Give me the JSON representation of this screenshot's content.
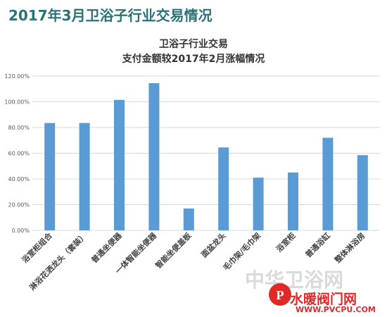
{
  "header": {
    "title": "2017年3月卫浴子行业交易情况"
  },
  "chart_data": {
    "type": "bar",
    "title_lines": [
      "卫浴子行业交易",
      "支付金额较2017年2月涨幅情况"
    ],
    "categories": [
      "浴室柜组合",
      "淋浴花洒龙头（套装）",
      "普通坐便器",
      "一体智能坐便器",
      "智能坐便盖板",
      "面盆龙头",
      "毛巾架/毛巾架",
      "浴室柜",
      "普通浴缸",
      "整体淋浴房"
    ],
    "values": [
      0.835,
      0.835,
      1.015,
      1.145,
      0.17,
      0.645,
      0.41,
      0.45,
      0.72,
      0.585
    ],
    "y_ticks": [
      "0.00%",
      "20.00%",
      "40.00%",
      "60.00%",
      "80.00%",
      "100.00%",
      "120.00%"
    ],
    "ylim": [
      0,
      1.2
    ],
    "grid": true,
    "bar_color": "#5b9bd5",
    "xlabel": "",
    "ylabel": ""
  },
  "watermark": {
    "site_name": "水暖阀门网",
    "url": "WWW.PVCPU.COM",
    "faint_text": "中华卫浴网"
  },
  "colors": {
    "title": "#2b7277",
    "bar": "#5b9bd5",
    "watermark_red": "#e02a2a"
  }
}
